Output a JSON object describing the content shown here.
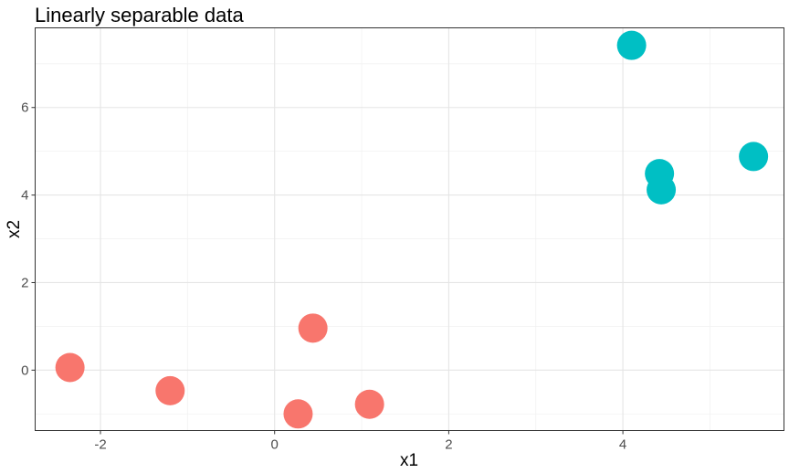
{
  "chart_data": {
    "type": "scatter",
    "title": "Linearly separable data",
    "xlabel": "x1",
    "ylabel": "x2",
    "xlim": [
      -2.75,
      5.85
    ],
    "ylim": [
      -1.38,
      7.82
    ],
    "xticks": [
      -2,
      0,
      2,
      4
    ],
    "yticks": [
      0,
      2,
      4,
      6
    ],
    "xtick_labels": [
      "-2",
      "0",
      "2",
      "4"
    ],
    "ytick_labels": [
      "0",
      "2",
      "4",
      "6"
    ],
    "grid": true,
    "legend": "none",
    "series": [
      {
        "color": "#F8766D",
        "points": [
          {
            "x": -2.35,
            "y": 0.06
          },
          {
            "x": -1.2,
            "y": -0.47
          },
          {
            "x": 0.27,
            "y": -1.0
          },
          {
            "x": 0.44,
            "y": 0.96
          },
          {
            "x": 1.09,
            "y": -0.78
          }
        ]
      },
      {
        "color": "#00BFC4",
        "points": [
          {
            "x": 4.1,
            "y": 7.42
          },
          {
            "x": 4.42,
            "y": 4.49
          },
          {
            "x": 4.44,
            "y": 4.12
          },
          {
            "x": 5.5,
            "y": 4.88
          }
        ]
      }
    ]
  }
}
